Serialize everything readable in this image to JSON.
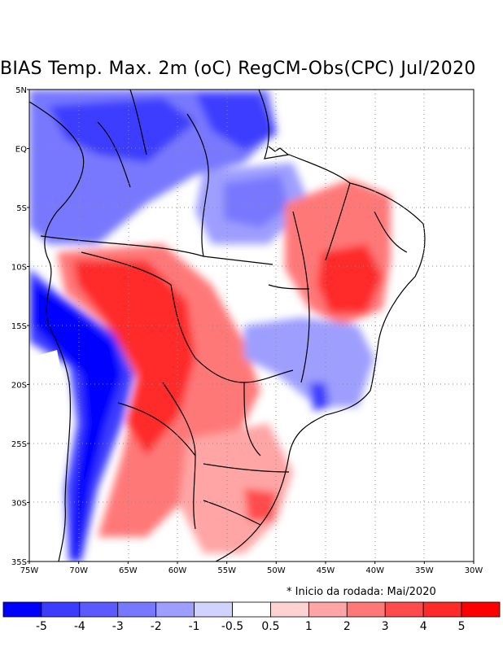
{
  "title": "BIAS Temp. Max. 2m (oC) RegCM-Obs(CPC) Jul/2020",
  "map": {
    "lat_ticks": [
      "5N",
      "EQ",
      "5S",
      "10S",
      "15S",
      "20S",
      "25S",
      "30S",
      "35S"
    ],
    "lon_ticks": [
      "75W",
      "70W",
      "65W",
      "60W",
      "55W",
      "50W",
      "45W",
      "40W",
      "35W",
      "30W"
    ],
    "lon_range": [
      -75,
      -30
    ],
    "lat_range": [
      -35,
      5
    ],
    "grid": "dotted",
    "regions": [
      {
        "name": "north-blue-anomaly",
        "level": -3
      },
      {
        "name": "amazon-blue-anomaly",
        "level": -2
      },
      {
        "name": "andes-strong-blue",
        "level": -5
      },
      {
        "name": "central-west-red",
        "level": 5
      },
      {
        "name": "northeast-red-core",
        "level": 5
      },
      {
        "name": "southeast-blue",
        "level": -2
      },
      {
        "name": "south-red",
        "level": 3
      }
    ]
  },
  "note": "* Inicio da rodada: Mai/2020",
  "colorbar": {
    "labels": [
      "-5",
      "-4",
      "-3",
      "-2",
      "-1",
      "-0.5",
      "0.5",
      "1",
      "2",
      "3",
      "4",
      "5"
    ],
    "colors": [
      "#0000ff",
      "#3c3cff",
      "#5a5aff",
      "#7878ff",
      "#9e9eff",
      "#d2d2ff",
      "#ffffff",
      "#ffd2d2",
      "#ffa5a5",
      "#ff7878",
      "#ff4b4b",
      "#ff2a2a",
      "#ff0000"
    ]
  }
}
